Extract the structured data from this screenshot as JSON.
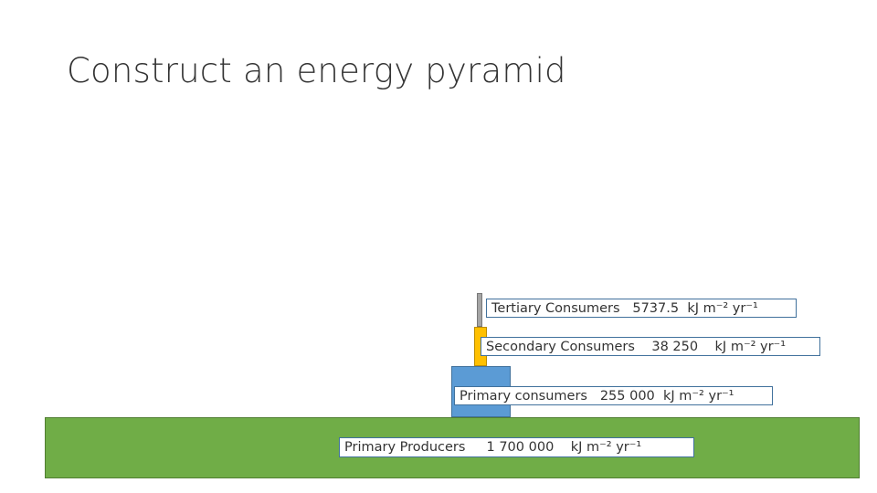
{
  "slide": {
    "title": "Construct an energy pyramid"
  },
  "pyramid": {
    "tertiary": {
      "label": "Tertiary Consumers",
      "value_text": "5737.5",
      "unit": "kJ m⁻² yr⁻¹",
      "color": "#a5a5a5"
    },
    "secondary": {
      "label": "Secondary Consumers",
      "value_text": "38 250",
      "unit": "kJ m⁻² yr⁻¹",
      "color": "#ffc000"
    },
    "primary": {
      "label": "Primary consumers",
      "value_text": "255 000",
      "unit": "kJ m⁻² yr⁻¹",
      "color": "#5b9bd5"
    },
    "producers": {
      "label": "Primary Producers",
      "value_text": "1 700 000",
      "unit": "kJ m⁻² yr⁻¹",
      "color": "#70ad47"
    }
  }
}
